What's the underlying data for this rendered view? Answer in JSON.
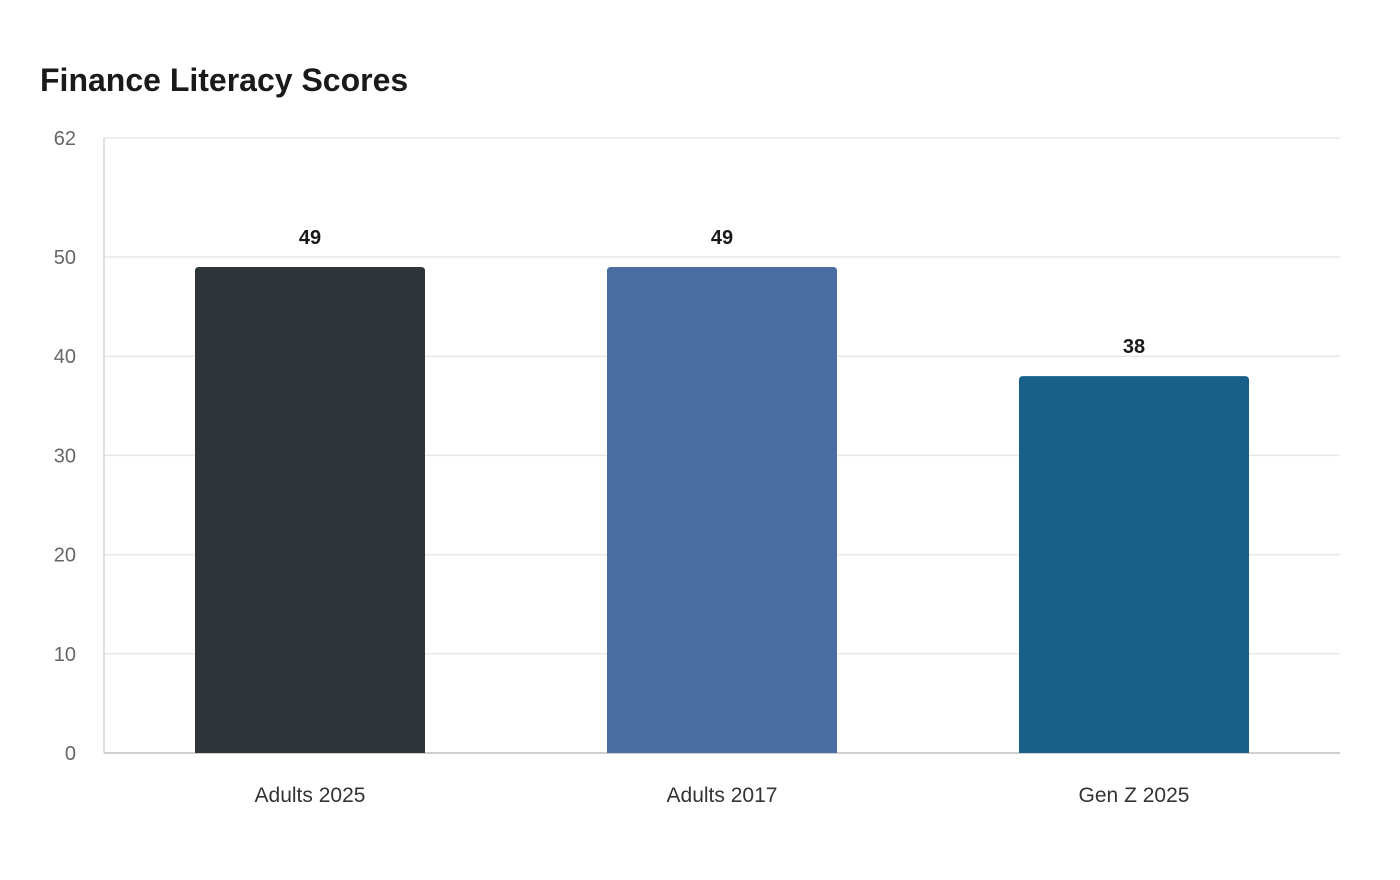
{
  "chart_data": {
    "type": "bar",
    "title": "Finance Literacy Scores",
    "categories": [
      "Adults 2025",
      "Adults 2017",
      "Gen Z 2025"
    ],
    "values": [
      49,
      49,
      38
    ],
    "value_labels": [
      "49",
      "49",
      "38"
    ],
    "colors": [
      "#2e3538",
      "#4a6da2",
      "#186087"
    ],
    "ylim": [
      0,
      62
    ],
    "yticks": [
      0,
      10,
      20,
      30,
      40,
      50,
      62
    ],
    "xlabel": "",
    "ylabel": "",
    "grid": true,
    "legend": "none"
  }
}
